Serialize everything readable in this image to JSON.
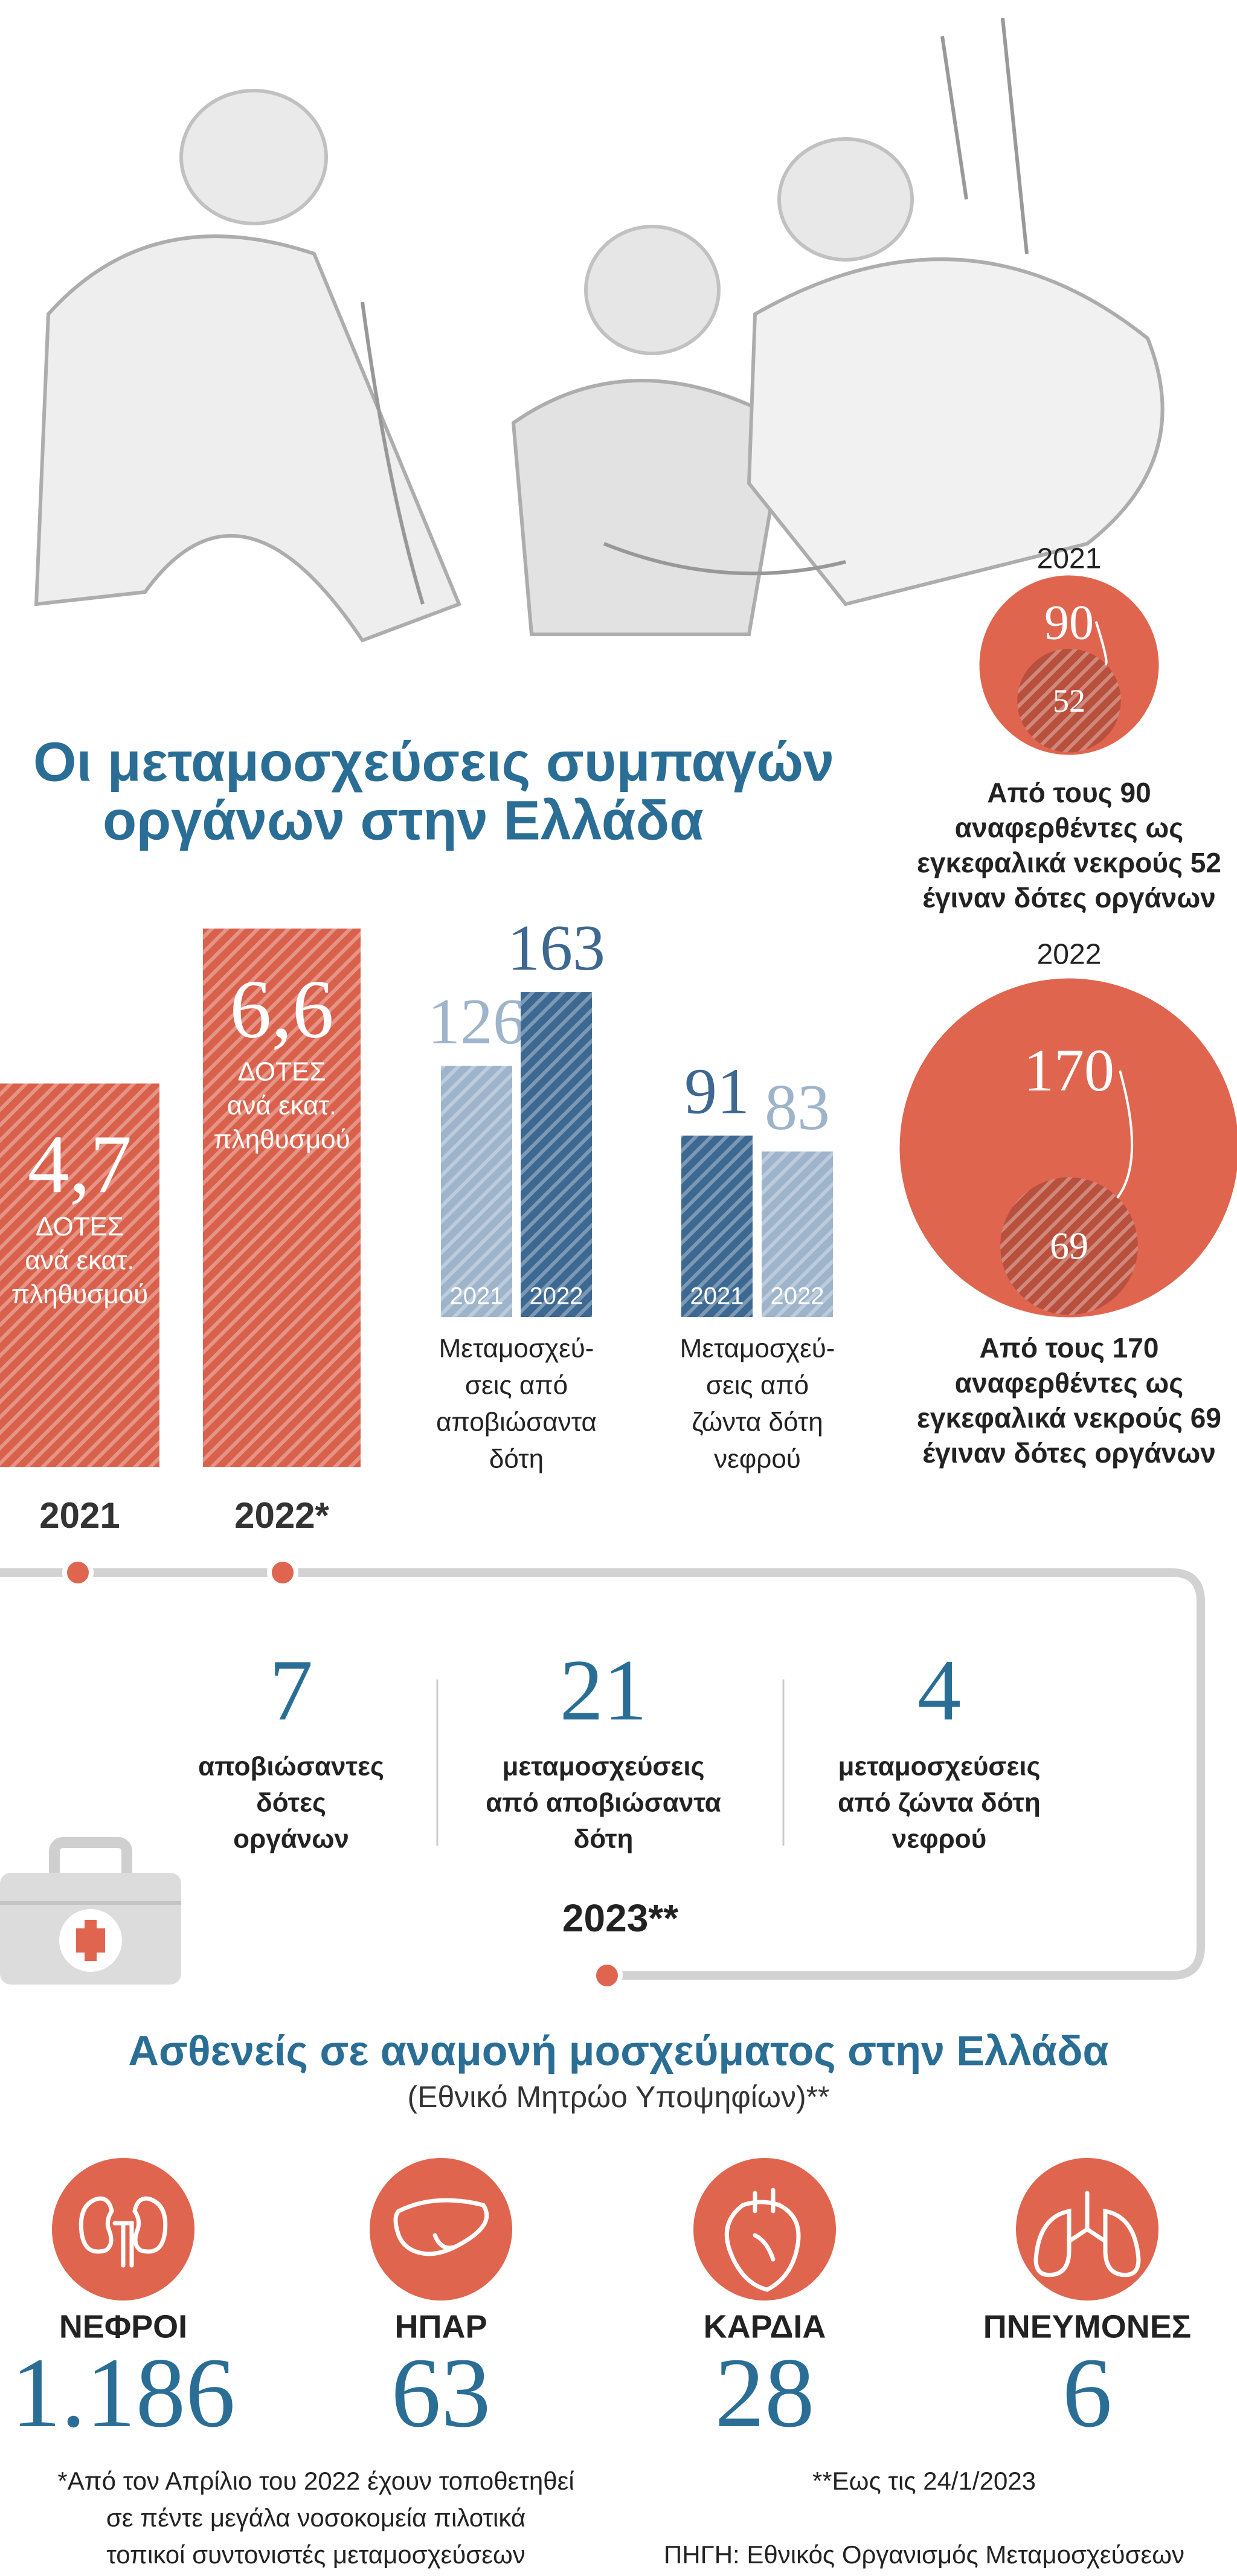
{
  "title": [
    "Οι μεταμοσχεύσεις συμπαγών",
    "οργάνων στην Ελλάδα"
  ],
  "chart_data": [
    {
      "type": "bar",
      "categories": [
        "2021",
        "2022*"
      ],
      "values": [
        4.7,
        6.6
      ],
      "value_labels": [
        "4,7",
        "6,6"
      ],
      "color": "#d9614c",
      "annotations": [
        [
          "ΔΟΤΕΣ",
          "ανά εκατ.",
          "πληθυσμού"
        ],
        [
          "ΔΟΤΕΣ",
          "ανά εκατ.",
          "πληθυσμού"
        ]
      ]
    },
    {
      "type": "bar",
      "categories": [
        "2021",
        "2022"
      ],
      "values": [
        126,
        163
      ],
      "colors": [
        "#9db4cb",
        "#3d6891"
      ],
      "caption": [
        "Μεταμοσχεύ-",
        "σεις από",
        "αποβιώσαντα",
        "δότη"
      ]
    },
    {
      "type": "bar",
      "categories": [
        "2021",
        "2022"
      ],
      "values": [
        91,
        83
      ],
      "colors": [
        "#3d6891",
        "#9db4cb"
      ],
      "caption": [
        "Μεταμοσχεύ-",
        "σεις από",
        "ζώντα δότη",
        "νεφρού"
      ]
    },
    {
      "type": "bubble",
      "categories": [
        "2021",
        "2022"
      ],
      "series": [
        {
          "values": [
            90,
            170
          ],
          "color": "#e0654f"
        },
        {
          "values": [
            52,
            69
          ],
          "color": "#b94f3d"
        }
      ],
      "captions": [
        [
          "Από τους 90",
          "αναφερθέντες ως",
          "εγκεφαλικά νεκρούς 52",
          "έγιναν δότες οργάνων"
        ],
        [
          "Από τους 170",
          "αναφερθέντες ως",
          "εγκεφαλικά νεκρούς 69",
          "έγιναν δότες οργάνων"
        ]
      ]
    }
  ],
  "stats_2023": {
    "label": "2023**",
    "items": [
      {
        "value": 7,
        "label": [
          "αποβιώσαντες",
          "δότες",
          "οργάνων"
        ]
      },
      {
        "value": 21,
        "label": [
          "μεταμοσχεύσεις",
          "από αποβιώσαντα",
          "δότη"
        ]
      },
      {
        "value": 4,
        "label": [
          "μεταμοσχεύσεις",
          "από ζώντα δότη",
          "νεφρού"
        ]
      }
    ]
  },
  "waiting": {
    "title": "Ασθενείς σε αναμονή μοσχεύματος στην Ελλάδα",
    "subtitle": "(Εθνικό Μητρώο Υποψηφίων)**",
    "items": [
      {
        "name": "ΝΕΦΡΟΙ",
        "value": 1186,
        "value_label": "1.186"
      },
      {
        "name": "ΗΠΑΡ",
        "value": 63
      },
      {
        "name": "ΚΑΡΔΙΑ",
        "value": 28
      },
      {
        "name": "ΠΝΕΥΜΟΝΕΣ",
        "value": 6
      }
    ]
  },
  "notes": {
    "left": [
      "*Από τον Απρίλιο του 2022 έχουν τοποθετηθεί",
      "σε πέντε μεγάλα νοσοκομεία πιλοτικά",
      "τοπικοί συντονιστές μεταμοσχεύσεων"
    ],
    "right": [
      "**Εως τις 24/1/2023",
      "ΠΗΓΗ: Εθνικός Οργανισμός Μεταμοσχεύσεων"
    ]
  }
}
